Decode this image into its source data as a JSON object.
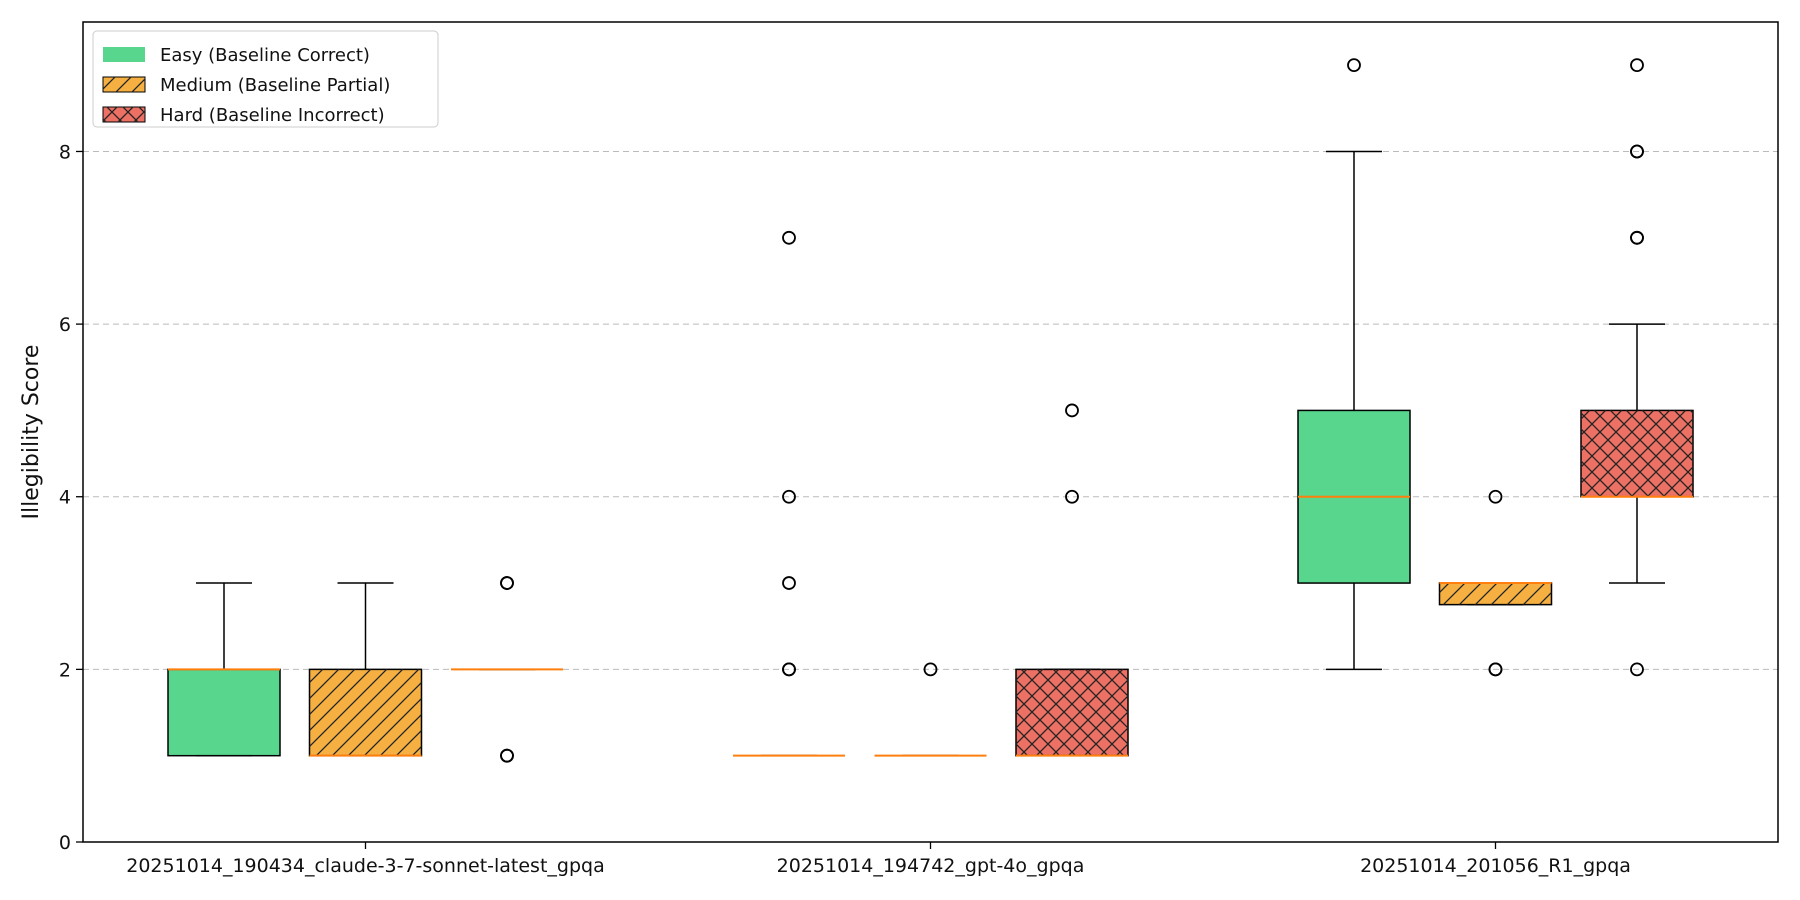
{
  "chart_data": {
    "type": "boxplot",
    "ylabel": "Illegibility Score",
    "xlabel": "",
    "ylim": [
      0,
      9.5
    ],
    "yticks": [
      0,
      2,
      4,
      6,
      8
    ],
    "grid": {
      "y": true,
      "style": "dashed"
    },
    "legend_position": "top-left",
    "categories": [
      "20251014_190434_claude-3-7-sonnet-latest_gpqa",
      "20251014_194742_gpt-4o_gpqa",
      "20251014_201056_R1_gpqa"
    ],
    "series": [
      {
        "name": "Easy (Baseline Correct)",
        "color": "#2ecc71",
        "hatch": "none",
        "boxes": [
          {
            "whisker_low": 1,
            "q1": 1,
            "median": 2,
            "q3": 2,
            "whisker_high": 3,
            "outliers": []
          },
          {
            "whisker_low": 1,
            "q1": 1,
            "median": 1,
            "q3": 1,
            "whisker_high": 1,
            "outliers": [
              2,
              2,
              3,
              4,
              7
            ]
          },
          {
            "whisker_low": 2,
            "q1": 3,
            "median": 4,
            "q3": 5,
            "whisker_high": 8,
            "outliers": [
              9
            ]
          }
        ]
      },
      {
        "name": "Medium (Baseline Partial)",
        "color": "#f39c12",
        "hatch": "diagonal",
        "boxes": [
          {
            "whisker_low": 1,
            "q1": 1,
            "median": 1,
            "q3": 2,
            "whisker_high": 3,
            "outliers": []
          },
          {
            "whisker_low": 1,
            "q1": 1,
            "median": 1,
            "q3": 1,
            "whisker_high": 1,
            "outliers": [
              2
            ]
          },
          {
            "whisker_low": 2.75,
            "q1": 2.75,
            "median": 3,
            "q3": 3,
            "whisker_high": 3,
            "outliers": [
              2,
              2,
              4
            ]
          }
        ]
      },
      {
        "name": "Hard (Baseline Incorrect)",
        "color": "#e74c3c",
        "hatch": "crosshatch",
        "boxes": [
          {
            "whisker_low": 2,
            "q1": 2,
            "median": 2,
            "q3": 2,
            "whisker_high": 2,
            "outliers": [
              1,
              1,
              3,
              3
            ]
          },
          {
            "whisker_low": 1,
            "q1": 1,
            "median": 1,
            "q3": 2,
            "whisker_high": 2,
            "outliers": [
              4,
              5
            ]
          },
          {
            "whisker_low": 3,
            "q1": 4,
            "median": 4,
            "q3": 5,
            "whisker_high": 6,
            "outliers": [
              2,
              7,
              7,
              8,
              8,
              9
            ]
          }
        ]
      }
    ]
  },
  "colors": {
    "median": "#ff7f0e",
    "frame": "#000000",
    "grid": "#bbbbbb"
  }
}
